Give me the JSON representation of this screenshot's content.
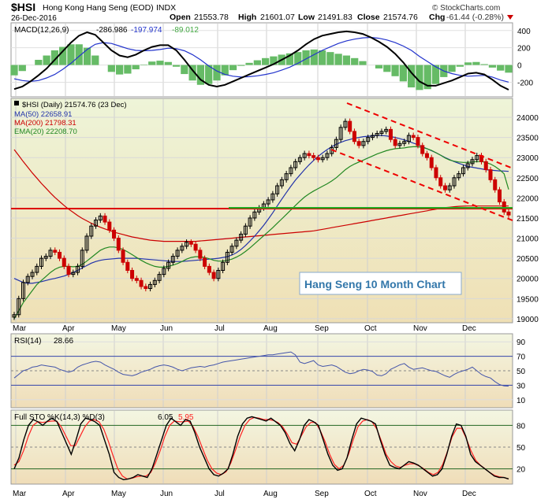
{
  "header": {
    "symbol": "$HSI",
    "name": "Hong Kong Hang Seng (EOD)",
    "exchange": "INDX",
    "date": "26-Dec-2016",
    "copyright": "© StockCharts.com",
    "open_label": "Open",
    "open": "21553.78",
    "high_label": "High",
    "high": "21601.07",
    "low_label": "Low",
    "low": "21491.83",
    "close_label": "Close",
    "close": "21574.76",
    "chg_label": "Chg",
    "chg": "-61.44 (-0.28%)"
  },
  "colors": {
    "up": "#000000",
    "down": "#cc0000",
    "ma50": "#2233aa",
    "ma200": "#cc0000",
    "ema20": "#228822",
    "hist": "#66bb66",
    "support": "#22aa22",
    "resistance": "#dd0000",
    "price_bg_top": "#eef4d8",
    "price_bg_bottom": "#efe0b5",
    "rsi_line": "#4455aa",
    "sto_k": "#000000",
    "sto_d": "#ff2222"
  },
  "annotation": "Hang Seng 10 Month Chart",
  "chart_data": [
    {
      "panel": "MACD",
      "type": "line",
      "legend": {
        "label": "MACD(12,26,9)",
        "macd": "-286.986",
        "signal": "-197.974",
        "hist": "-89.012"
      },
      "y_ticks": [
        400,
        200,
        0,
        -200
      ],
      "ylim": [
        -360,
        480
      ],
      "series": [
        {
          "name": "MACD",
          "values": [
            -280,
            -250,
            -190,
            -120,
            -40,
            60,
            160,
            260,
            340,
            380,
            350,
            260,
            170,
            110,
            90,
            120,
            170,
            210,
            230,
            230,
            170,
            60,
            -60,
            -170,
            -230,
            -250,
            -230,
            -190,
            -150,
            -110,
            -70,
            -30,
            10,
            60,
            110,
            170,
            240,
            300,
            340,
            360,
            380,
            390,
            380,
            360,
            320,
            270,
            210,
            130,
            30,
            -90,
            -190,
            -240,
            -240,
            -210,
            -180,
            -140,
            -100,
            -90,
            -110,
            -170,
            -240,
            -287
          ]
        },
        {
          "name": "Signal",
          "values": [
            -160,
            -180,
            -190,
            -180,
            -150,
            -110,
            -50,
            20,
            100,
            180,
            240,
            260,
            250,
            220,
            190,
            170,
            165,
            170,
            180,
            195,
            190,
            165,
            120,
            60,
            -10,
            -70,
            -110,
            -130,
            -140,
            -135,
            -125,
            -110,
            -90,
            -60,
            -25,
            20,
            70,
            120,
            170,
            210,
            250,
            280,
            300,
            315,
            320,
            310,
            290,
            260,
            220,
            170,
            100,
            40,
            -20,
            -70,
            -100,
            -120,
            -130,
            -125,
            -120,
            -140,
            -175,
            -198
          ]
        }
      ]
    },
    {
      "panel": "Price",
      "type": "candlestick",
      "legend": {
        "main": "$HSI (Daily) 21574.76 (23 Dec)",
        "ma50": "MA(50) 22658.91",
        "ma200": "MA(200) 21798.31",
        "ema20": "EMA(20) 22208.70"
      },
      "x_ticks": [
        "Mar",
        "Apr",
        "May",
        "Jun",
        "Jul",
        "Aug",
        "Sep",
        "Oct",
        "Nov",
        "Dec"
      ],
      "y_ticks": [
        24000,
        23500,
        23000,
        22500,
        22000,
        21500,
        21000,
        20500,
        20000,
        19500,
        19000
      ],
      "ylim": [
        18920,
        24450
      ],
      "close": [
        19100,
        19500,
        19900,
        20050,
        20150,
        20300,
        20500,
        20550,
        20700,
        20650,
        20500,
        20300,
        20100,
        20150,
        20300,
        20700,
        21050,
        21300,
        21450,
        21550,
        21400,
        21200,
        21000,
        20700,
        20400,
        20200,
        20000,
        19950,
        19800,
        19750,
        19850,
        19950,
        20100,
        20250,
        20400,
        20550,
        20700,
        20800,
        20900,
        20850,
        20700,
        20500,
        20300,
        20150,
        20000,
        20200,
        20400,
        20650,
        20800,
        20950,
        21100,
        21300,
        21500,
        21650,
        21750,
        21850,
        21950,
        22100,
        22300,
        22450,
        22600,
        22750,
        22900,
        23000,
        23100,
        23050,
        23000,
        22950,
        23000,
        23100,
        23250,
        23450,
        23750,
        23900,
        23650,
        23400,
        23300,
        23400,
        23500,
        23550,
        23600,
        23650,
        23700,
        23450,
        23300,
        23350,
        23400,
        23550,
        23500,
        23300,
        23100,
        23000,
        22750,
        22500,
        22300,
        22200,
        22300,
        22500,
        22600,
        22750,
        22850,
        22950,
        23050,
        22900,
        22700,
        22450,
        22200,
        21900,
        21650,
        21575
      ],
      "ma50": [
        20000,
        19950,
        19900,
        19880,
        19880,
        19900,
        19920,
        19950,
        19980,
        20000,
        20030,
        20060,
        20100,
        20150,
        20200,
        20260,
        20320,
        20380,
        20420,
        20450,
        20470,
        20480,
        20490,
        20500,
        20500,
        20500,
        20500,
        20500,
        20490,
        20480,
        20470,
        20460,
        20450,
        20440,
        20430,
        20420,
        20420,
        20420,
        20430,
        20440,
        20450,
        20460,
        20470,
        20480,
        20490,
        20500,
        20520,
        20540,
        20580,
        20640,
        20720,
        20820,
        20930,
        21050,
        21180,
        21320,
        21470,
        21630,
        21800,
        21970,
        22130,
        22290,
        22440,
        22570,
        22700,
        22820,
        22930,
        23030,
        23120,
        23200,
        23270,
        23330,
        23380,
        23420,
        23450,
        23480,
        23500,
        23520,
        23530,
        23540,
        23550,
        23550,
        23540,
        23520,
        23500,
        23470,
        23440,
        23400,
        23360,
        23320,
        23270,
        23220,
        23170,
        23120,
        23060,
        23000,
        22950,
        22900,
        22860,
        22820,
        22780,
        22760,
        22740,
        22720,
        22700,
        22690,
        22680,
        22670,
        22665,
        22659
      ],
      "ma200": [
        23200,
        23050,
        22900,
        22760,
        22620,
        22490,
        22360,
        22240,
        22120,
        22010,
        21910,
        21810,
        21720,
        21640,
        21560,
        21490,
        21430,
        21370,
        21320,
        21270,
        21230,
        21190,
        21150,
        21120,
        21090,
        21060,
        21030,
        21010,
        20990,
        20970,
        20950,
        20940,
        20930,
        20920,
        20920,
        20920,
        20920,
        20920,
        20920,
        20920,
        20920,
        20930,
        20940,
        20950,
        20960,
        20970,
        20980,
        20990,
        21000,
        21010,
        21020,
        21030,
        21040,
        21050,
        21060,
        21070,
        21080,
        21090,
        21100,
        21110,
        21120,
        21130,
        21140,
        21150,
        21160,
        21170,
        21180,
        21200,
        21220,
        21240,
        21260,
        21280,
        21300,
        21320,
        21340,
        21360,
        21380,
        21400,
        21420,
        21440,
        21460,
        21480,
        21500,
        21520,
        21540,
        21560,
        21580,
        21600,
        21620,
        21640,
        21660,
        21680,
        21700,
        21720,
        21740,
        21760,
        21770,
        21780,
        21790,
        21795,
        21798,
        21798,
        21798,
        21798,
        21798,
        21798,
        21798,
        21798,
        21798,
        21798
      ],
      "ema20": [
        19000,
        19200,
        19400,
        19550,
        19700,
        19850,
        19950,
        20050,
        20150,
        20230,
        20280,
        20300,
        20300,
        20290,
        20300,
        20350,
        20430,
        20520,
        20610,
        20700,
        20750,
        20780,
        20780,
        20760,
        20720,
        20660,
        20590,
        20520,
        20450,
        20390,
        20340,
        20300,
        20280,
        20280,
        20300,
        20330,
        20370,
        20420,
        20480,
        20520,
        20540,
        20540,
        20520,
        20490,
        20450,
        20430,
        20430,
        20450,
        20480,
        20530,
        20590,
        20670,
        20760,
        20860,
        20960,
        21060,
        21160,
        21260,
        21370,
        21480,
        21590,
        21700,
        21810,
        21920,
        22020,
        22100,
        22170,
        22230,
        22290,
        22350,
        22420,
        22500,
        22600,
        22700,
        22780,
        22840,
        22890,
        22940,
        22990,
        23040,
        23090,
        23130,
        23170,
        23200,
        23220,
        23230,
        23240,
        23260,
        23270,
        23270,
        23250,
        23220,
        23180,
        23120,
        23060,
        22990,
        22940,
        22910,
        22890,
        22880,
        22880,
        22890,
        22900,
        22900,
        22880,
        22840,
        22780,
        22700,
        22600,
        22209
      ]
    },
    {
      "panel": "RSI",
      "type": "line",
      "legend": {
        "label": "RSI(14)",
        "value": "28.66"
      },
      "y_ticks": [
        90,
        70,
        50,
        30,
        10
      ],
      "ylim": [
        0,
        100
      ],
      "values": [
        40,
        45,
        50,
        52,
        55,
        56,
        58,
        57,
        56,
        55,
        52,
        50,
        48,
        50,
        55,
        58,
        60,
        62,
        63,
        62,
        58,
        55,
        52,
        48,
        45,
        44,
        43,
        45,
        48,
        50,
        52,
        55,
        57,
        58,
        57,
        55,
        52,
        50,
        52,
        54,
        55,
        56,
        55,
        57,
        58,
        60,
        62,
        63,
        64,
        65,
        66,
        67,
        68,
        69,
        70,
        71,
        72,
        72,
        73,
        74,
        75,
        76,
        72,
        62,
        60,
        62,
        64,
        58,
        56,
        57,
        58,
        56,
        52,
        48,
        46,
        47,
        50,
        52,
        51,
        49,
        44,
        43,
        46,
        52,
        55,
        58,
        60,
        55,
        52,
        53,
        54,
        52,
        50,
        49,
        46,
        43,
        41,
        45,
        48,
        50,
        52,
        55,
        50,
        45,
        42,
        40,
        35,
        31,
        29,
        28.66
      ]
    },
    {
      "panel": "Full STO",
      "type": "line",
      "legend": {
        "label": "Full STO %K(14,3) %D(3)",
        "k": "6.05",
        "d": "5.95"
      },
      "y_ticks": [
        80,
        50,
        20
      ],
      "ylim": [
        0,
        100
      ],
      "series": [
        {
          "name": "%K",
          "values": [
            20,
            35,
            60,
            80,
            88,
            85,
            80,
            86,
            90,
            85,
            70,
            55,
            40,
            60,
            82,
            90,
            88,
            85,
            80,
            60,
            40,
            15,
            8,
            5,
            6,
            8,
            12,
            10,
            8,
            20,
            40,
            60,
            80,
            90,
            85,
            80,
            88,
            86,
            70,
            50,
            35,
            20,
            12,
            10,
            14,
            20,
            40,
            65,
            82,
            90,
            92,
            90,
            88,
            86,
            90,
            85,
            80,
            70,
            55,
            45,
            60,
            80,
            88,
            85,
            80,
            60,
            40,
            25,
            18,
            20,
            35,
            60,
            82,
            90,
            88,
            86,
            82,
            60,
            40,
            25,
            22,
            20,
            25,
            30,
            28,
            25,
            20,
            15,
            10,
            12,
            20,
            40,
            65,
            82,
            80,
            65,
            40,
            30,
            25,
            20,
            15,
            10,
            8,
            8,
            6.05
          ]
        },
        {
          "name": "%D",
          "values": [
            25,
            30,
            45,
            65,
            80,
            85,
            84,
            85,
            86,
            86,
            78,
            65,
            52,
            52,
            65,
            78,
            86,
            88,
            85,
            75,
            58,
            38,
            20,
            10,
            6,
            7,
            9,
            10,
            10,
            15,
            28,
            45,
            65,
            80,
            86,
            85,
            85,
            86,
            78,
            65,
            48,
            32,
            20,
            14,
            12,
            16,
            28,
            46,
            65,
            80,
            88,
            91,
            90,
            88,
            88,
            87,
            84,
            78,
            68,
            56,
            54,
            66,
            78,
            84,
            84,
            73,
            58,
            40,
            26,
            20,
            25,
            40,
            60,
            78,
            86,
            88,
            85,
            75,
            58,
            40,
            30,
            24,
            22,
            25,
            27,
            27,
            24,
            20,
            15,
            12,
            15,
            26,
            44,
            64,
            76,
            76,
            62,
            45,
            32,
            25,
            20,
            15,
            11,
            9,
            8,
            5.95
          ]
        }
      ]
    }
  ]
}
